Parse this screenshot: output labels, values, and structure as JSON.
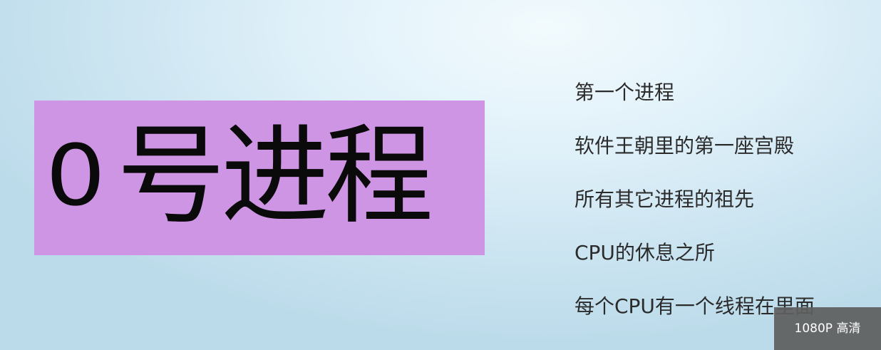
{
  "slide": {
    "title_number": "0",
    "title_text": "号进程",
    "title_bg_color": "#cf95e5",
    "points": [
      "第一个进程",
      "软件王朝里的第一座宫殿",
      "所有其它进程的祖先",
      "CPU的休息之所",
      "每个CPU有一个线程在里面"
    ]
  },
  "player": {
    "quality_label": "1080P 高清"
  }
}
